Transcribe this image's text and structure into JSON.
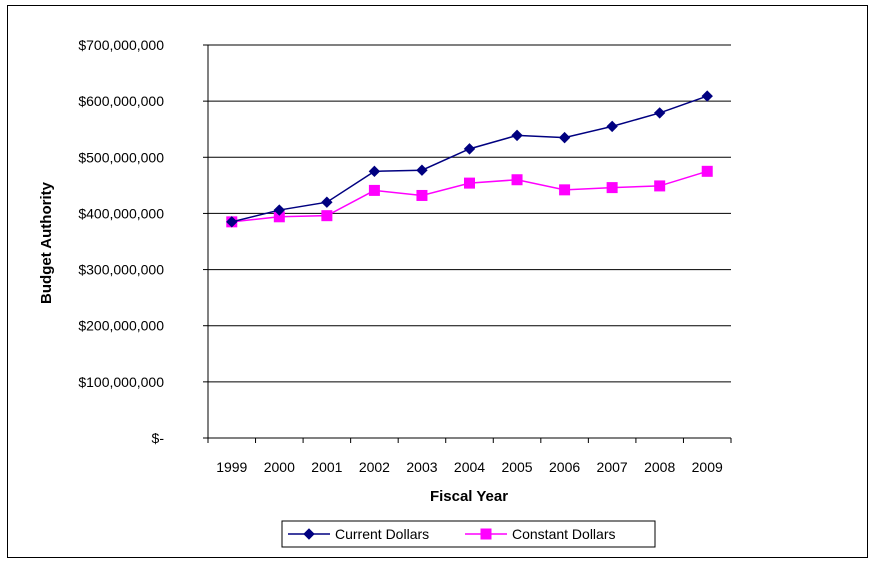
{
  "chart_data": {
    "type": "line",
    "xlabel": "Fiscal Year",
    "ylabel": "Budget Authority",
    "categories": [
      "1999",
      "2000",
      "2001",
      "2002",
      "2003",
      "2004",
      "2005",
      "2006",
      "2007",
      "2008",
      "2009"
    ],
    "ylim": [
      0,
      700000000
    ],
    "ytick_values": [
      0,
      100000000,
      200000000,
      300000000,
      400000000,
      500000000,
      600000000,
      700000000
    ],
    "ytick_labels": [
      "$-",
      "$100,000,000",
      "$200,000,000",
      "$300,000,000",
      "$400,000,000",
      "$500,000,000",
      "$600,000,000",
      "$700,000,000"
    ],
    "grid": true,
    "legend_position": "bottom",
    "series": [
      {
        "name": "Current Dollars",
        "color": "#000080",
        "marker": "diamond",
        "values": [
          385000000,
          406000000,
          420000000,
          475000000,
          477000000,
          515000000,
          539000000,
          535000000,
          555000000,
          579000000,
          609000000
        ]
      },
      {
        "name": "Constant Dollars",
        "color": "#FF00FF",
        "marker": "square",
        "values": [
          385000000,
          394000000,
          396000000,
          441000000,
          432000000,
          454000000,
          460000000,
          442000000,
          446000000,
          449000000,
          475000000
        ]
      }
    ]
  }
}
